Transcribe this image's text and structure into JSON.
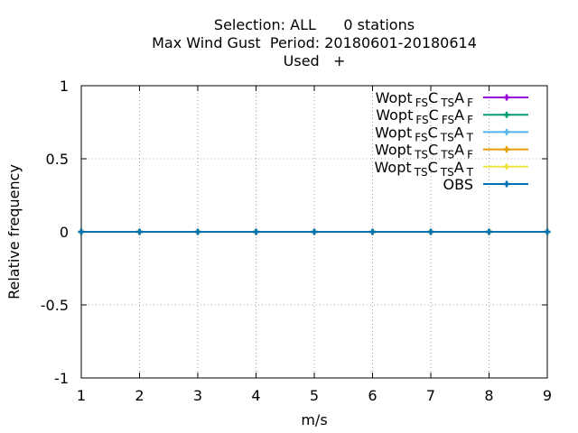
{
  "chart_data": {
    "type": "line",
    "title_lines": [
      "Selection: ALL      0 stations",
      "Max Wind Gust  Period: 20180601-20180614",
      "Used   +"
    ],
    "xlabel": "m/s",
    "ylabel": "Relative frequency",
    "xlim": [
      1,
      9
    ],
    "ylim": [
      -1,
      1
    ],
    "xticks": [
      1,
      2,
      3,
      4,
      5,
      6,
      7,
      8,
      9
    ],
    "yticks": [
      {
        "value": -1,
        "label": "-1"
      },
      {
        "value": -0.5,
        "label": "-0.5"
      },
      {
        "value": 0,
        "label": "0"
      },
      {
        "value": 0.5,
        "label": "0.5"
      },
      {
        "value": 1,
        "label": "1"
      }
    ],
    "grid": true,
    "legend_position": "top-right",
    "x": [
      1,
      2,
      3,
      4,
      5,
      6,
      7,
      8,
      9
    ],
    "series": [
      {
        "name": "Wopt FS C TS A F",
        "label_parts": [
          [
            "Wopt",
            ""
          ],
          [
            "FS",
            "sub"
          ],
          [
            "C",
            ""
          ],
          [
            "TS",
            "sub"
          ],
          [
            "A",
            ""
          ],
          [
            "F",
            "sub"
          ]
        ],
        "color": "#9400d3",
        "values": [
          0,
          0,
          0,
          0,
          0,
          0,
          0,
          0,
          0
        ]
      },
      {
        "name": "Wopt FS C FS A F",
        "label_parts": [
          [
            "Wopt",
            ""
          ],
          [
            "FS",
            "sub"
          ],
          [
            "C",
            ""
          ],
          [
            "FS",
            "sub"
          ],
          [
            "A",
            ""
          ],
          [
            "F",
            "sub"
          ]
        ],
        "color": "#009e73",
        "values": [
          0,
          0,
          0,
          0,
          0,
          0,
          0,
          0,
          0
        ]
      },
      {
        "name": "Wopt FS C TS A T",
        "label_parts": [
          [
            "Wopt",
            ""
          ],
          [
            "FS",
            "sub"
          ],
          [
            "C",
            ""
          ],
          [
            "TS",
            "sub"
          ],
          [
            "A",
            ""
          ],
          [
            "T",
            "sub"
          ]
        ],
        "color": "#56b4e9",
        "values": [
          0,
          0,
          0,
          0,
          0,
          0,
          0,
          0,
          0
        ]
      },
      {
        "name": "Wopt TS C TS A F",
        "label_parts": [
          [
            "Wopt",
            ""
          ],
          [
            "TS",
            "sub"
          ],
          [
            "C",
            ""
          ],
          [
            "TS",
            "sub"
          ],
          [
            "A",
            ""
          ],
          [
            "F",
            "sub"
          ]
        ],
        "color": "#e69f00",
        "values": [
          0,
          0,
          0,
          0,
          0,
          0,
          0,
          0,
          0
        ]
      },
      {
        "name": "Wopt TS C TS A T",
        "label_parts": [
          [
            "Wopt",
            ""
          ],
          [
            "TS",
            "sub"
          ],
          [
            "C",
            ""
          ],
          [
            "TS",
            "sub"
          ],
          [
            "A",
            ""
          ],
          [
            "T",
            "sub"
          ]
        ],
        "color": "#f0e442",
        "values": [
          0,
          0,
          0,
          0,
          0,
          0,
          0,
          0,
          0
        ]
      },
      {
        "name": "OBS",
        "label_parts": [
          [
            "OBS",
            ""
          ]
        ],
        "color": "#0072b2",
        "values": [
          0,
          0,
          0,
          0,
          0,
          0,
          0,
          0,
          0
        ]
      }
    ]
  }
}
